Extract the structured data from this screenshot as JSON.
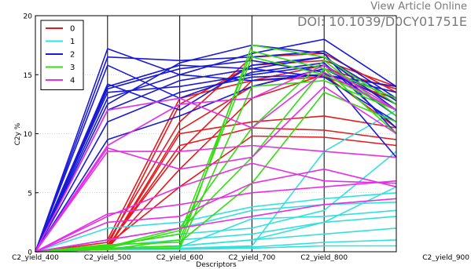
{
  "header": {
    "link_text": "View Article Online",
    "doi": "DOI: 10.1039/D0CY01751E"
  },
  "colors": {
    "0": "#e41a1c",
    "1": "#33e0e0",
    "2": "#1a1ad6",
    "3": "#33dd11",
    "4": "#e62ee6"
  },
  "chart_data": {
    "type": "line",
    "subtype": "parallel_coordinates",
    "title": "",
    "xlabel": "Descriptors",
    "ylabel": "C2y %",
    "categories": [
      "C2_yield_400",
      "C2_yield_500",
      "C2_yield_600",
      "C2_yield_700",
      "C2_yield_800",
      "C2_yield_900"
    ],
    "ylim": [
      0,
      20
    ],
    "yticks": [
      0,
      5,
      10,
      15,
      20
    ],
    "grid": true,
    "legend_position": "top-left",
    "legend": [
      "0",
      "1",
      "2",
      "3",
      "4"
    ],
    "series": [
      {
        "name": "0",
        "lines": [
          [
            0,
            0.3,
            10.3,
            14.0,
            15.5,
            13.8
          ],
          [
            0,
            0.5,
            12.5,
            15.8,
            16.2,
            14.0
          ],
          [
            0,
            0.8,
            11.0,
            16.5,
            16.8,
            13.5
          ],
          [
            0,
            1.0,
            13.0,
            14.5,
            15.8,
            12.5
          ],
          [
            0,
            0.2,
            10.0,
            11.0,
            11.5,
            10.5
          ],
          [
            0,
            0.4,
            9.0,
            10.5,
            10.3,
            9.5
          ],
          [
            0,
            0.6,
            5.5,
            9.8,
            9.7,
            9.0
          ],
          [
            0,
            0.3,
            7.0,
            13.0,
            15.0,
            10.5
          ],
          [
            0,
            0.5,
            8.5,
            14.5,
            14.8,
            13.0
          ]
        ]
      },
      {
        "name": "1",
        "lines": [
          [
            0,
            0.3,
            0.3,
            0.4,
            0.8,
            1.0
          ],
          [
            0,
            0.5,
            1.0,
            1.5,
            2.5,
            3.0
          ],
          [
            0,
            1.0,
            2.0,
            3.5,
            4.0,
            4.2
          ],
          [
            0,
            2.0,
            2.5,
            3.8,
            4.5,
            5.0
          ],
          [
            0,
            0.5,
            1.5,
            2.0,
            3.5,
            8.5
          ],
          [
            0,
            0.3,
            0.5,
            1.0,
            1.5,
            2.0
          ],
          [
            0,
            0.2,
            0.3,
            0.5,
            8.5,
            12.0
          ],
          [
            0,
            0.3,
            0.5,
            1.0,
            2.5,
            5.5
          ],
          [
            0,
            0.2,
            0.2,
            0.3,
            0.5,
            0.5
          ],
          [
            0,
            0.3,
            0.4,
            2.8,
            3.0,
            3.5
          ]
        ]
      },
      {
        "name": "2",
        "lines": [
          [
            0,
            17.2,
            15.0,
            16.8,
            18.0,
            14.0
          ],
          [
            0,
            16.5,
            16.2,
            16.5,
            17.0,
            13.0
          ],
          [
            0,
            14.0,
            15.8,
            15.5,
            16.5,
            12.0
          ],
          [
            0,
            13.5,
            14.0,
            15.0,
            15.8,
            11.5
          ],
          [
            0,
            12.5,
            16.0,
            17.5,
            16.8,
            10.0
          ],
          [
            0,
            14.2,
            12.0,
            15.8,
            16.5,
            12.8
          ],
          [
            0,
            11.0,
            13.5,
            14.8,
            15.0,
            13.5
          ],
          [
            0,
            13.8,
            15.5,
            16.2,
            15.2,
            8.0
          ],
          [
            0,
            12.0,
            14.5,
            15.5,
            14.8,
            11.0
          ],
          [
            0,
            9.5,
            11.5,
            14.0,
            15.5,
            12.5
          ],
          [
            0,
            15.8,
            13.0,
            15.2,
            16.0,
            10.5
          ],
          [
            0,
            13.0,
            15.0,
            14.5,
            15.0,
            14.0
          ]
        ]
      },
      {
        "name": "3",
        "lines": [
          [
            0,
            0.3,
            0.5,
            17.5,
            16.5,
            12.5
          ],
          [
            0,
            0.5,
            1.5,
            17.0,
            15.5,
            13.0
          ],
          [
            0,
            0.2,
            1.0,
            16.5,
            15.0,
            12.0
          ],
          [
            0,
            0.4,
            2.0,
            10.5,
            16.2,
            11.5
          ],
          [
            0,
            0.3,
            1.8,
            8.0,
            15.5,
            10.0
          ],
          [
            0,
            0.6,
            0.8,
            5.8,
            13.5,
            11.0
          ],
          [
            0,
            0.2,
            0.3,
            14.0,
            14.5,
            12.0
          ]
        ]
      },
      {
        "name": "4",
        "lines": [
          [
            0,
            9.0,
            12.5,
            13.0,
            15.8,
            12.0
          ],
          [
            0,
            8.5,
            8.5,
            9.0,
            8.5,
            8.0
          ],
          [
            0,
            3.2,
            4.0,
            5.0,
            5.5,
            6.0
          ],
          [
            0,
            3.0,
            5.5,
            7.5,
            6.0,
            5.8
          ],
          [
            0,
            1.0,
            2.0,
            3.0,
            4.0,
            4.5
          ],
          [
            0,
            12.0,
            13.0,
            10.5,
            15.2,
            12.0
          ],
          [
            0,
            8.8,
            7.0,
            8.0,
            14.0,
            10.0
          ],
          [
            0,
            2.5,
            3.0,
            5.8,
            7.0,
            5.5
          ]
        ]
      }
    ]
  }
}
